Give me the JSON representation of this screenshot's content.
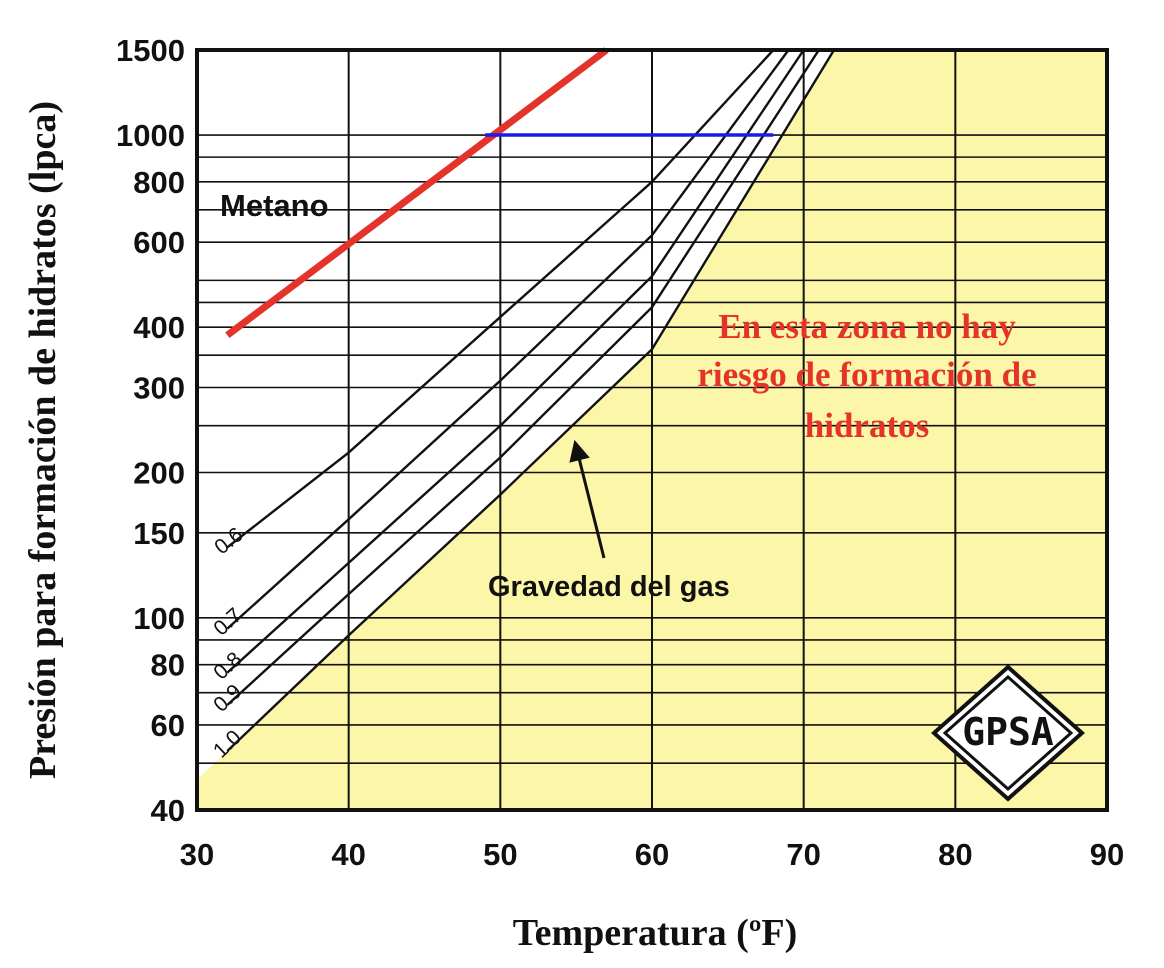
{
  "chart_data": {
    "type": "line",
    "xlabel": "Temperatura (ºF)",
    "ylabel": "Presión para formación de hidratos (lpca)",
    "xlim": [
      30,
      90
    ],
    "ylim": [
      40,
      1500
    ],
    "y_scale": "log",
    "grid": true,
    "x_ticks": [
      30,
      40,
      50,
      60,
      70,
      80,
      90
    ],
    "y_ticks": [
      40,
      60,
      80,
      100,
      150,
      200,
      300,
      400,
      600,
      800,
      1000,
      1500
    ],
    "y_gridlines": [
      40,
      50,
      60,
      70,
      80,
      90,
      100,
      150,
      200,
      250,
      300,
      350,
      400,
      450,
      500,
      600,
      700,
      800,
      900,
      1000,
      1500
    ],
    "series": [
      {
        "name": "0.6",
        "color": "#111111",
        "points": [
          [
            32,
            140
          ],
          [
            40,
            220
          ],
          [
            50,
            420
          ],
          [
            60,
            800
          ],
          [
            68,
            1500
          ]
        ]
      },
      {
        "name": "0.7",
        "color": "#111111",
        "points": [
          [
            32,
            95
          ],
          [
            40,
            160
          ],
          [
            50,
            310
          ],
          [
            60,
            620
          ],
          [
            69,
            1500
          ]
        ]
      },
      {
        "name": "0.8",
        "color": "#111111",
        "points": [
          [
            32,
            77
          ],
          [
            40,
            130
          ],
          [
            50,
            250
          ],
          [
            60,
            510
          ],
          [
            70,
            1500
          ]
        ]
      },
      {
        "name": "0.9",
        "color": "#111111",
        "points": [
          [
            32,
            66
          ],
          [
            40,
            112
          ],
          [
            50,
            215
          ],
          [
            60,
            440
          ],
          [
            71,
            1500
          ]
        ]
      },
      {
        "name": "1.0",
        "color": "#111111",
        "points": [
          [
            32,
            53
          ],
          [
            40,
            92
          ],
          [
            50,
            180
          ],
          [
            60,
            360
          ],
          [
            72,
            1500
          ]
        ]
      }
    ],
    "methane_line": {
      "name": "Metano",
      "color": "#e3332a",
      "points": [
        [
          32,
          385
        ],
        [
          57,
          1500
        ]
      ]
    },
    "reading_line": {
      "color": "#1a1aee",
      "points": [
        [
          49,
          1000
        ],
        [
          68,
          1000
        ]
      ]
    },
    "safe_zone_color": "#fcf6a9",
    "annotations": {
      "safe_zone": [
        "En esta zona no hay",
        "riesgo de formación de",
        "hidratos"
      ],
      "safe_zone_color": "#e3332a",
      "gravity": "Gravedad del gas"
    },
    "logo": "GPSA"
  }
}
